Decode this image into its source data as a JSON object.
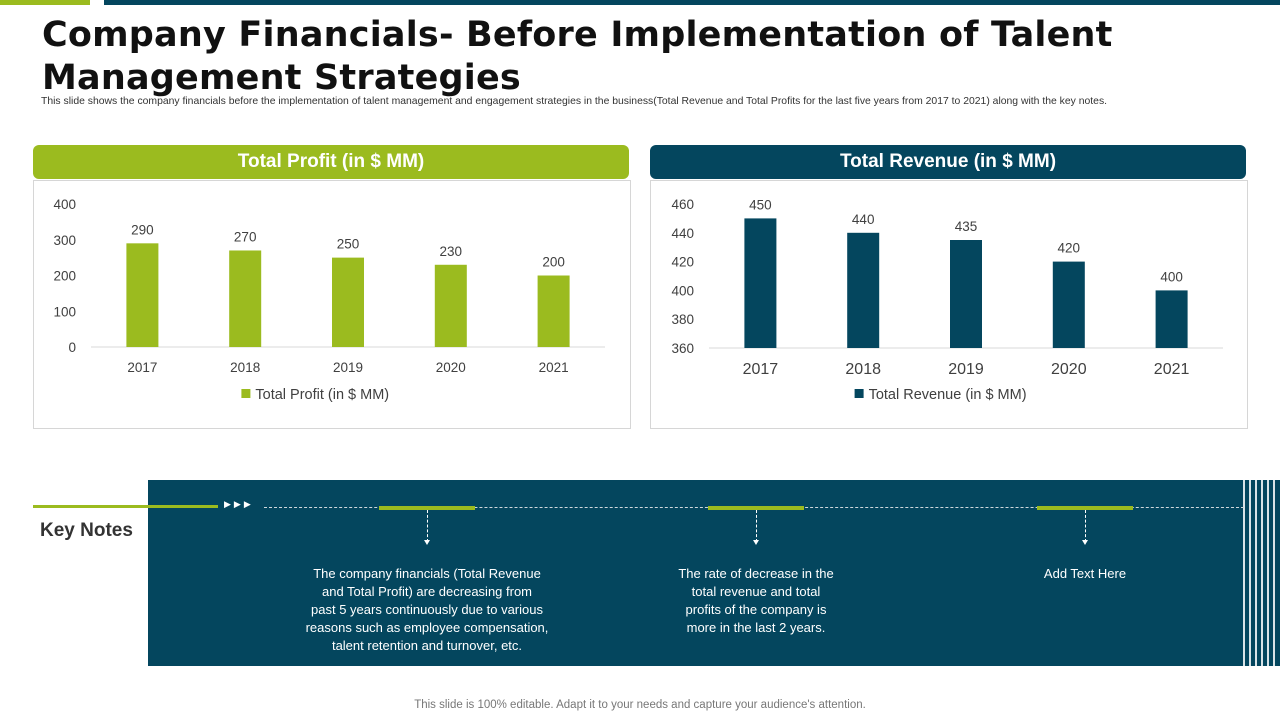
{
  "title": "Company Financials- Before Implementation of Talent Management Strategies",
  "subtitle": "This slide shows the company financials before the implementation of talent management and engagement strategies in the business(Total Revenue and Total Profits for the last five years from 2017 to 2021) along with the key notes.",
  "colors": {
    "green": "#9bbb1f",
    "navy": "#04465e"
  },
  "chart_data": [
    {
      "type": "bar",
      "title": "Total Profit (in $ MM)",
      "categories": [
        "2017",
        "2018",
        "2019",
        "2020",
        "2021"
      ],
      "series": [
        {
          "name": "Total Profit (in $ MM)",
          "values": [
            290,
            270,
            250,
            230,
            200
          ]
        }
      ],
      "ylim": [
        0,
        400
      ],
      "yticks": [
        0,
        100,
        200,
        300,
        400
      ],
      "legend": "bottom",
      "color": "#9bbb1f"
    },
    {
      "type": "bar",
      "title": "Total Revenue (in $ MM)",
      "categories": [
        "2017",
        "2018",
        "2019",
        "2020",
        "2021"
      ],
      "series": [
        {
          "name": "Total Revenue (in $ MM)",
          "values": [
            450,
            440,
            435,
            420,
            400
          ]
        }
      ],
      "ylim": [
        360,
        460
      ],
      "yticks": [
        360,
        380,
        400,
        420,
        440,
        460
      ],
      "legend": "bottom",
      "color": "#04465e"
    }
  ],
  "key_notes": {
    "title": "Key Notes",
    "notes": [
      {
        "lines": [
          "The company financials (Total Revenue",
          "and Total Profit) are decreasing from",
          "past 5 years continuously due to various",
          "reasons such as employee compensation,",
          "talent retention and turnover, etc."
        ]
      },
      {
        "lines": [
          "The rate of decrease in the",
          "total revenue and total",
          "profits of the company is",
          "more in the last 2 years."
        ]
      },
      {
        "lines": [
          "Add Text Here"
        ]
      }
    ]
  },
  "footer": "This slide is 100% editable. Adapt it to your needs and capture your audience's attention."
}
